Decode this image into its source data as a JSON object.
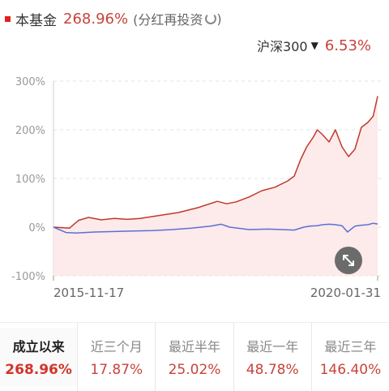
{
  "legend": {
    "fund_label": "本基金",
    "fund_value": "268.96%",
    "fund_note": "(分红再投资",
    "benchmark_label": "沪深300",
    "benchmark_value": "6.53%"
  },
  "colors": {
    "fund_line": "#c0392b",
    "fund_fill": "#fde8e8",
    "benchmark_line": "#5b6fd6",
    "accent_red": "#c8433a"
  },
  "chart_data": {
    "type": "line",
    "title": "",
    "xlabel": "",
    "ylabel": "",
    "x_start": "2015-11-17",
    "x_end": "2020-01-31",
    "x_ticks": [
      "2015-11-17",
      "2020-01-31"
    ],
    "y_ticks": [
      "300%",
      "200%",
      "100%",
      "0%",
      "-100%"
    ],
    "y_tick_values": [
      300,
      200,
      100,
      0,
      -100
    ],
    "ylim": [
      -100,
      300
    ],
    "grid": true,
    "series": [
      {
        "name": "本基金",
        "x": [
          "2015-11-17",
          "2016-02-01",
          "2016-03-15",
          "2016-05-01",
          "2016-07-01",
          "2016-09-01",
          "2016-11-01",
          "2017-01-01",
          "2017-04-01",
          "2017-07-01",
          "2017-10-01",
          "2018-01-01",
          "2018-02-15",
          "2018-04-01",
          "2018-06-01",
          "2018-08-01",
          "2018-10-01",
          "2018-12-01",
          "2019-01-01",
          "2019-02-01",
          "2019-03-01",
          "2019-04-01",
          "2019-04-20",
          "2019-05-15",
          "2019-06-15",
          "2019-07-15",
          "2019-08-15",
          "2019-09-15",
          "2019-10-15",
          "2019-11-15",
          "2019-12-15",
          "2020-01-10",
          "2020-01-31"
        ],
        "values": [
          0,
          -2,
          14,
          20,
          15,
          18,
          16,
          18,
          24,
          30,
          40,
          53,
          48,
          52,
          62,
          75,
          82,
          95,
          105,
          140,
          165,
          185,
          200,
          190,
          175,
          200,
          165,
          145,
          160,
          205,
          215,
          228,
          269
        ]
      },
      {
        "name": "沪深300",
        "x": [
          "2015-11-17",
          "2016-01-15",
          "2016-03-01",
          "2016-06-01",
          "2016-09-01",
          "2016-12-01",
          "2017-03-01",
          "2017-06-01",
          "2017-09-01",
          "2017-12-01",
          "2018-01-20",
          "2018-03-01",
          "2018-06-01",
          "2018-09-01",
          "2018-11-01",
          "2019-01-01",
          "2019-02-15",
          "2019-03-15",
          "2019-04-20",
          "2019-05-15",
          "2019-06-15",
          "2019-07-15",
          "2019-08-15",
          "2019-09-10",
          "2019-10-15",
          "2019-11-15",
          "2019-12-15",
          "2020-01-10",
          "2020-01-31"
        ],
        "values": [
          0,
          -11,
          -12,
          -10,
          -9,
          -8,
          -7,
          -5,
          -2,
          2,
          6,
          0,
          -5,
          -4,
          -5,
          -6,
          0,
          2,
          3,
          5,
          6,
          5,
          3,
          -10,
          2,
          4,
          5,
          8,
          6.53
        ]
      }
    ]
  },
  "controls": {
    "expand_icon": "expand-diagonal-icon"
  },
  "periods": [
    {
      "label": "成立以来",
      "value": "268.96%",
      "active": true
    },
    {
      "label": "近三个月",
      "value": "17.87%",
      "active": false
    },
    {
      "label": "最近半年",
      "value": "25.02%",
      "active": false
    },
    {
      "label": "最近一年",
      "value": "48.78%",
      "active": false
    },
    {
      "label": "最近三年",
      "value": "146.40%",
      "active": false
    }
  ]
}
